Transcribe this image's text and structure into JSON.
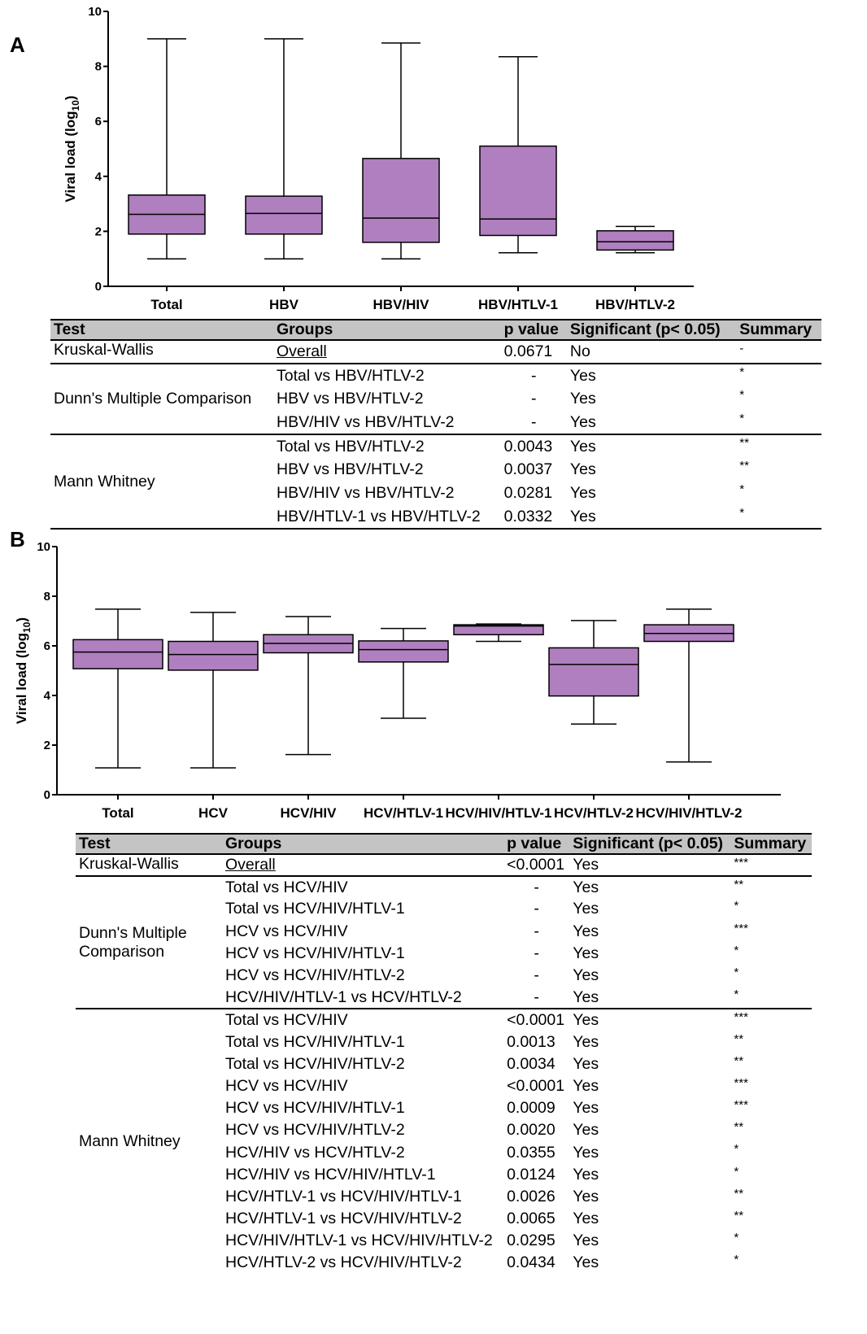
{
  "panels": {
    "a": {
      "letter": "A"
    },
    "b": {
      "letter": "B"
    }
  },
  "chart_data": [
    {
      "type": "box",
      "panel": "A",
      "ylabel": "Viral load (log",
      "ylabel_sub": "10",
      "ylabel_end": ")",
      "ylim": [
        0,
        10
      ],
      "yticks": [
        0,
        2,
        4,
        6,
        8,
        10
      ],
      "categories": [
        "Total",
        "HBV",
        "HBV/HIV",
        "HBV/HTLV-1",
        "HBV/HTLV-2"
      ],
      "box_color": "#b07fbf",
      "series": [
        {
          "min": 1.0,
          "q1": 1.9,
          "median": 2.62,
          "q3": 3.32,
          "max": 9.0
        },
        {
          "min": 1.0,
          "q1": 1.9,
          "median": 2.65,
          "q3": 3.28,
          "max": 9.0
        },
        {
          "min": 1.0,
          "q1": 1.6,
          "median": 2.48,
          "q3": 4.65,
          "max": 8.85
        },
        {
          "min": 1.22,
          "q1": 1.85,
          "median": 2.45,
          "q3": 5.1,
          "max": 8.35
        },
        {
          "min": 1.22,
          "q1": 1.32,
          "median": 1.62,
          "q3": 2.02,
          "max": 2.18
        }
      ]
    },
    {
      "type": "box",
      "panel": "B",
      "ylabel": "Viral load (log",
      "ylabel_sub": "10",
      "ylabel_end": ")",
      "ylim": [
        0,
        10
      ],
      "yticks": [
        0,
        2,
        4,
        6,
        8,
        10
      ],
      "categories": [
        "Total",
        "HCV",
        "HCV/HIV",
        "HCV/HTLV-1",
        "HCV/HIV/HTLV-1",
        "HCV/HTLV-2",
        "HCV/HIV/HTLV-2"
      ],
      "box_color": "#b07fbf",
      "series": [
        {
          "min": 1.08,
          "q1": 5.08,
          "median": 5.75,
          "q3": 6.25,
          "max": 7.48
        },
        {
          "min": 1.08,
          "q1": 5.02,
          "median": 5.65,
          "q3": 6.18,
          "max": 7.35
        },
        {
          "min": 1.62,
          "q1": 5.72,
          "median": 6.1,
          "q3": 6.45,
          "max": 7.18
        },
        {
          "min": 3.08,
          "q1": 5.35,
          "median": 5.85,
          "q3": 6.2,
          "max": 6.7
        },
        {
          "min": 6.18,
          "q1": 6.45,
          "median": 6.8,
          "q3": 6.85,
          "max": 6.88
        },
        {
          "min": 2.85,
          "q1": 3.98,
          "median": 5.25,
          "q3": 5.92,
          "max": 7.02
        },
        {
          "min": 1.32,
          "q1": 6.18,
          "median": 6.5,
          "q3": 6.85,
          "max": 7.48
        }
      ]
    }
  ],
  "table_a": {
    "headers": [
      "Test",
      "Groups",
      "p value",
      "Significant (p< 0.05)",
      "Summary"
    ],
    "groups": [
      {
        "test": "Kruskal-Wallis",
        "rows": [
          {
            "group": "Overall",
            "p": "0.0671",
            "sig": "No",
            "summary": "-"
          }
        ]
      },
      {
        "test": "Dunn's Multiple Comparison",
        "rows": [
          {
            "group": "Total vs HBV/HTLV-2",
            "p": "-",
            "sig": "Yes",
            "summary": "*"
          },
          {
            "group": "HBV vs HBV/HTLV-2",
            "p": "-",
            "sig": "Yes",
            "summary": "*"
          },
          {
            "group": "HBV/HIV vs HBV/HTLV-2",
            "p": "-",
            "sig": "Yes",
            "summary": "*"
          }
        ]
      },
      {
        "test": "Mann Whitney",
        "rows": [
          {
            "group": "Total vs HBV/HTLV-2",
            "p": "0.0043",
            "sig": "Yes",
            "summary": "**"
          },
          {
            "group": "HBV vs HBV/HTLV-2",
            "p": "0.0037",
            "sig": "Yes",
            "summary": "**"
          },
          {
            "group": "HBV/HIV vs HBV/HTLV-2",
            "p": "0.0281",
            "sig": "Yes",
            "summary": "*"
          },
          {
            "group": "HBV/HTLV-1 vs HBV/HTLV-2",
            "p": "0.0332",
            "sig": "Yes",
            "summary": "*"
          }
        ]
      }
    ]
  },
  "table_b": {
    "headers": [
      "Test",
      "Groups",
      "p value",
      "Significant (p< 0.05)",
      "Summary"
    ],
    "groups": [
      {
        "test": "Kruskal-Wallis",
        "rows": [
          {
            "group": "Overall",
            "p": "<0.0001",
            "sig": "Yes",
            "summary": "***"
          }
        ]
      },
      {
        "test": "Dunn's Multiple\nComparison",
        "rows": [
          {
            "group": "Total vs HCV/HIV",
            "p": "-",
            "sig": "Yes",
            "summary": "**"
          },
          {
            "group": "Total vs HCV/HIV/HTLV-1",
            "p": "-",
            "sig": "Yes",
            "summary": "*"
          },
          {
            "group": "HCV vs HCV/HIV",
            "p": "-",
            "sig": "Yes",
            "summary": "***"
          },
          {
            "group": "HCV vs HCV/HIV/HTLV-1",
            "p": "-",
            "sig": "Yes",
            "summary": "*"
          },
          {
            "group": "HCV vs HCV/HIV/HTLV-2",
            "p": "-",
            "sig": "Yes",
            "summary": "*"
          },
          {
            "group": "HCV/HIV/HTLV-1 vs HCV/HTLV-2",
            "p": "-",
            "sig": "Yes",
            "summary": "*"
          }
        ]
      },
      {
        "test": "Mann Whitney",
        "rows": [
          {
            "group": "Total vs HCV/HIV",
            "p": "<0.0001",
            "sig": "Yes",
            "summary": "***"
          },
          {
            "group": "Total vs HCV/HIV/HTLV-1",
            "p": "0.0013",
            "sig": "Yes",
            "summary": "**"
          },
          {
            "group": "Total vs HCV/HIV/HTLV-2",
            "p": "0.0034",
            "sig": "Yes",
            "summary": "**"
          },
          {
            "group": "HCV vs HCV/HIV",
            "p": "<0.0001",
            "sig": "Yes",
            "summary": "***"
          },
          {
            "group": "HCV vs HCV/HIV/HTLV-1",
            "p": "0.0009",
            "sig": "Yes",
            "summary": "***"
          },
          {
            "group": "HCV vs HCV/HIV/HTLV-2",
            "p": "0.0020",
            "sig": "Yes",
            "summary": "**"
          },
          {
            "group": "HCV/HIV vs HCV/HTLV-2",
            "p": "0.0355",
            "sig": "Yes",
            "summary": "*"
          },
          {
            "group": "HCV/HIV vs HCV/HIV/HTLV-1",
            "p": "0.0124",
            "sig": "Yes",
            "summary": "*"
          },
          {
            "group": "HCV/HTLV-1 vs HCV/HIV/HTLV-1",
            "p": "0.0026",
            "sig": "Yes",
            "summary": "**"
          },
          {
            "group": "HCV/HTLV-1 vs HCV/HIV/HTLV-2",
            "p": "0.0065",
            "sig": "Yes",
            "summary": "**"
          },
          {
            "group": "HCV/HIV/HTLV-1 vs HCV/HIV/HTLV-2",
            "p": "0.0295",
            "sig": "Yes",
            "summary": "*"
          },
          {
            "group": "HCV/HTLV-2 vs HCV/HIV/HTLV-2",
            "p": "0.0434",
            "sig": "Yes",
            "summary": "*"
          }
        ]
      }
    ]
  }
}
